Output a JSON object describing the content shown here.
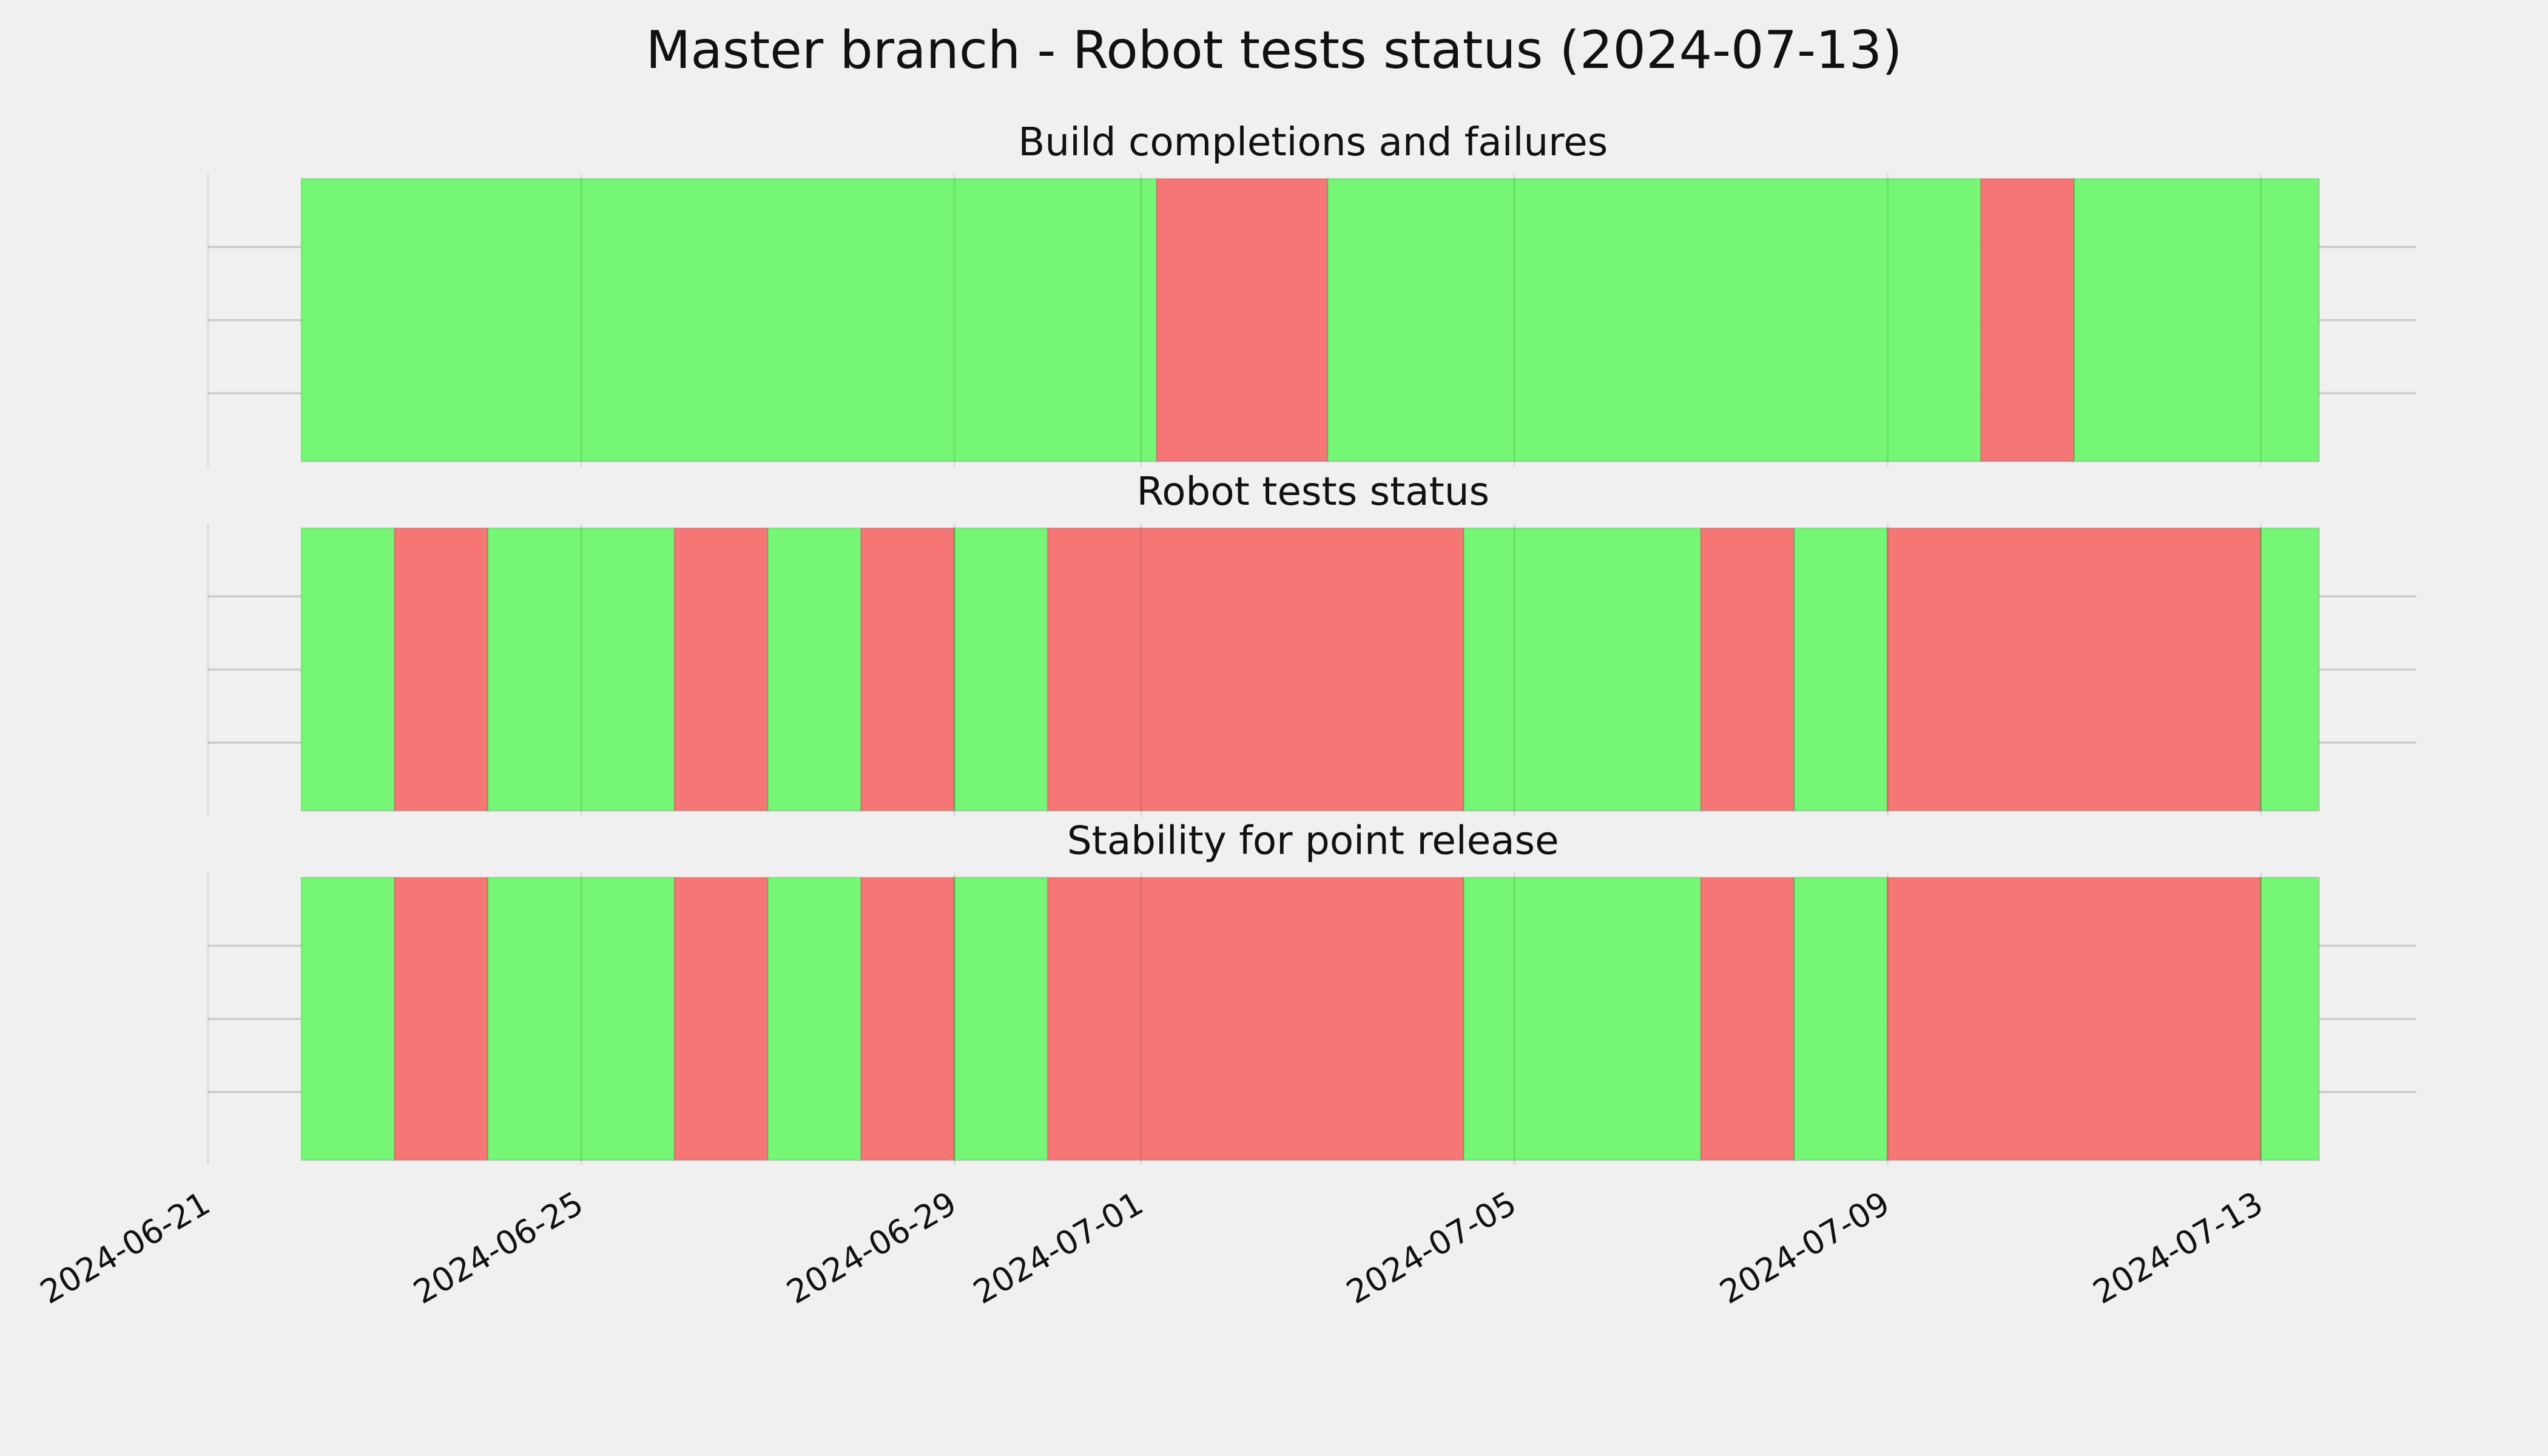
{
  "title": "Master branch - Robot tests status (2024-07-13)",
  "chart_data": [
    {
      "type": "timeline",
      "title": "Build completions and failures",
      "spans": [
        {
          "start": "2024-06-22",
          "end": "2024-07-01T04:00",
          "color": "#75f675"
        },
        {
          "start": "2024-07-01T04:00",
          "end": "2024-07-03",
          "color": "#f67676"
        },
        {
          "start": "2024-07-03",
          "end": "2024-07-10",
          "color": "#75f675"
        },
        {
          "start": "2024-07-10",
          "end": "2024-07-11",
          "color": "#f67676"
        },
        {
          "start": "2024-07-11",
          "end": "2024-07-13T15:00",
          "color": "#75f675"
        }
      ],
      "xlim": [
        "2024-06-21",
        "2024-07-14T16:00"
      ],
      "xticks": [
        "2024-06-21",
        "2024-06-25",
        "2024-06-29",
        "2024-07-01",
        "2024-07-05",
        "2024-07-09",
        "2024-07-13"
      ],
      "ylim": [
        0,
        1
      ],
      "yticks": [
        0.25,
        0.5,
        0.75
      ],
      "grid": true
    },
    {
      "type": "timeline",
      "title": "Robot tests status",
      "spans": [
        {
          "start": "2024-06-22",
          "end": "2024-06-23",
          "color": "#75f675"
        },
        {
          "start": "2024-06-23",
          "end": "2024-06-24",
          "color": "#f67676"
        },
        {
          "start": "2024-06-24",
          "end": "2024-06-26",
          "color": "#75f675"
        },
        {
          "start": "2024-06-26",
          "end": "2024-06-27",
          "color": "#f67676"
        },
        {
          "start": "2024-06-27",
          "end": "2024-06-28",
          "color": "#75f675"
        },
        {
          "start": "2024-06-28",
          "end": "2024-06-29",
          "color": "#f67676"
        },
        {
          "start": "2024-06-29",
          "end": "2024-06-30",
          "color": "#75f675"
        },
        {
          "start": "2024-06-30",
          "end": "2024-07-04T11:00",
          "color": "#f67676"
        },
        {
          "start": "2024-07-04T11:00",
          "end": "2024-07-07",
          "color": "#75f675"
        },
        {
          "start": "2024-07-07",
          "end": "2024-07-08",
          "color": "#f67676"
        },
        {
          "start": "2024-07-08",
          "end": "2024-07-09",
          "color": "#75f675"
        },
        {
          "start": "2024-07-09",
          "end": "2024-07-13",
          "color": "#f67676"
        },
        {
          "start": "2024-07-13",
          "end": "2024-07-13T15:00",
          "color": "#75f675"
        }
      ],
      "xlim": [
        "2024-06-21",
        "2024-07-14T16:00"
      ],
      "xticks": [
        "2024-06-21",
        "2024-06-25",
        "2024-06-29",
        "2024-07-01",
        "2024-07-05",
        "2024-07-09",
        "2024-07-13"
      ],
      "ylim": [
        0,
        1
      ],
      "yticks": [
        0.25,
        0.5,
        0.75
      ],
      "grid": true
    },
    {
      "type": "timeline",
      "title": "Stability for point release",
      "spans": [
        {
          "start": "2024-06-22",
          "end": "2024-06-23",
          "color": "#75f675"
        },
        {
          "start": "2024-06-23",
          "end": "2024-06-24",
          "color": "#f67676"
        },
        {
          "start": "2024-06-24",
          "end": "2024-06-26",
          "color": "#75f675"
        },
        {
          "start": "2024-06-26",
          "end": "2024-06-27",
          "color": "#f67676"
        },
        {
          "start": "2024-06-27",
          "end": "2024-06-28",
          "color": "#75f675"
        },
        {
          "start": "2024-06-28",
          "end": "2024-06-29",
          "color": "#f67676"
        },
        {
          "start": "2024-06-29",
          "end": "2024-06-30",
          "color": "#75f675"
        },
        {
          "start": "2024-06-30",
          "end": "2024-07-04T11:00",
          "color": "#f67676"
        },
        {
          "start": "2024-07-04T11:00",
          "end": "2024-07-07",
          "color": "#75f675"
        },
        {
          "start": "2024-07-07",
          "end": "2024-07-08",
          "color": "#f67676"
        },
        {
          "start": "2024-07-08",
          "end": "2024-07-09",
          "color": "#75f675"
        },
        {
          "start": "2024-07-09",
          "end": "2024-07-13",
          "color": "#f67676"
        },
        {
          "start": "2024-07-13",
          "end": "2024-07-13T15:00",
          "color": "#75f675"
        }
      ],
      "xlim": [
        "2024-06-21",
        "2024-07-14T16:00"
      ],
      "xticks": [
        "2024-06-21",
        "2024-06-25",
        "2024-06-29",
        "2024-07-01",
        "2024-07-05",
        "2024-07-09",
        "2024-07-13"
      ],
      "ylim": [
        0,
        1
      ],
      "yticks": [
        0.25,
        0.5,
        0.75
      ],
      "grid": true
    }
  ]
}
